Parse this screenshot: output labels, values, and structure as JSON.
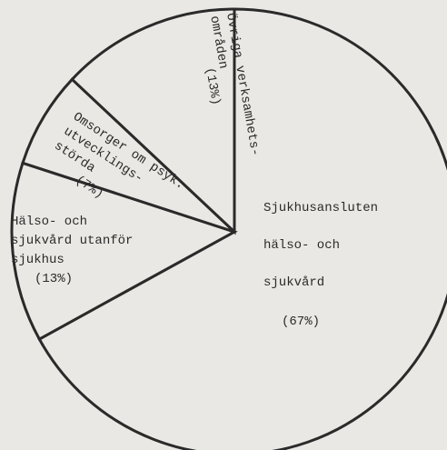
{
  "chart_data": {
    "type": "pie",
    "categories": [
      [
        "Sjukhusansluten",
        "hälso- och",
        "sjukvård"
      ],
      [
        "Hälso- och",
        "sjukvård utanför",
        "sjukhus"
      ],
      [
        "Omsorger om psyk.",
        "utvecklings-",
        "störda"
      ],
      [
        "Övriga verksamhets-",
        "områden"
      ]
    ],
    "values": [
      67,
      13,
      7,
      13
    ],
    "value_labels": [
      "(67%)",
      "(13%)",
      "(7%)",
      "(13%)"
    ],
    "color": "#e9e8e4"
  }
}
